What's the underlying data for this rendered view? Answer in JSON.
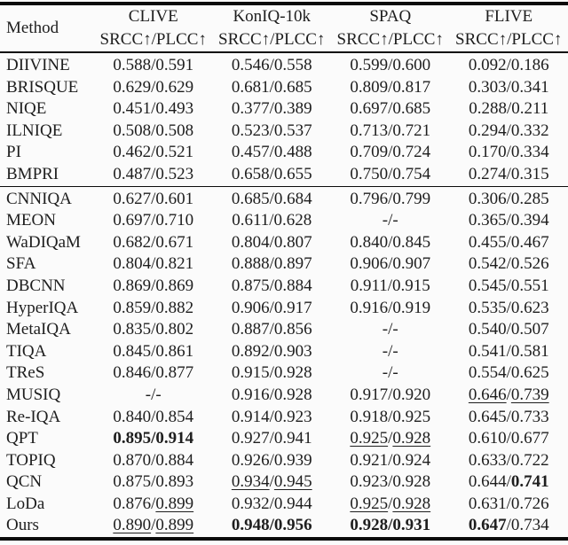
{
  "page": {
    "background_color": "#fbfbfb",
    "text_color": "#1e1e1e",
    "rule_color": "#0b0b0b"
  },
  "table": {
    "header": {
      "method_label": "Method",
      "datasets": [
        "CLIVE",
        "KonIQ-10k",
        "SPAQ",
        "FLIVE"
      ],
      "metric_label": "SRCC↑/PLCC↑"
    },
    "groups": [
      {
        "name": "hand-crafted-methods",
        "rows": [
          {
            "method": "DIIVINE",
            "cells": [
              {
                "srcc": "0.588",
                "plcc": "0.591"
              },
              {
                "srcc": "0.546",
                "plcc": "0.558"
              },
              {
                "srcc": "0.599",
                "plcc": "0.600"
              },
              {
                "srcc": "0.092",
                "plcc": "0.186"
              }
            ]
          },
          {
            "method": "BRISQUE",
            "cells": [
              {
                "srcc": "0.629",
                "plcc": "0.629"
              },
              {
                "srcc": "0.681",
                "plcc": "0.685"
              },
              {
                "srcc": "0.809",
                "plcc": "0.817"
              },
              {
                "srcc": "0.303",
                "plcc": "0.341"
              }
            ]
          },
          {
            "method": "NIQE",
            "cells": [
              {
                "srcc": "0.451",
                "plcc": "0.493"
              },
              {
                "srcc": "0.377",
                "plcc": "0.389"
              },
              {
                "srcc": "0.697",
                "plcc": "0.685"
              },
              {
                "srcc": "0.288",
                "plcc": "0.211"
              }
            ]
          },
          {
            "method": "ILNIQE",
            "cells": [
              {
                "srcc": "0.508",
                "plcc": "0.508"
              },
              {
                "srcc": "0.523",
                "plcc": "0.537"
              },
              {
                "srcc": "0.713",
                "plcc": "0.721"
              },
              {
                "srcc": "0.294",
                "plcc": "0.332"
              }
            ]
          },
          {
            "method": "PI",
            "cells": [
              {
                "srcc": "0.462",
                "plcc": "0.521"
              },
              {
                "srcc": "0.457",
                "plcc": "0.488"
              },
              {
                "srcc": "0.709",
                "plcc": "0.724"
              },
              {
                "srcc": "0.170",
                "plcc": "0.334"
              }
            ]
          },
          {
            "method": "BMPRI",
            "cells": [
              {
                "srcc": "0.487",
                "plcc": "0.523"
              },
              {
                "srcc": "0.658",
                "plcc": "0.655"
              },
              {
                "srcc": "0.750",
                "plcc": "0.754"
              },
              {
                "srcc": "0.274",
                "plcc": "0.315"
              }
            ]
          }
        ]
      },
      {
        "name": "learning-based-methods",
        "rows": [
          {
            "method": "CNNIQA",
            "cells": [
              {
                "srcc": "0.627",
                "plcc": "0.601"
              },
              {
                "srcc": "0.685",
                "plcc": "0.684"
              },
              {
                "srcc": "0.796",
                "plcc": "0.799"
              },
              {
                "srcc": "0.306",
                "plcc": "0.285"
              }
            ]
          },
          {
            "method": "MEON",
            "cells": [
              {
                "srcc": "0.697",
                "plcc": "0.710"
              },
              {
                "srcc": "0.611",
                "plcc": "0.628"
              },
              {
                "srcc": "-",
                "plcc": "-"
              },
              {
                "srcc": "0.365",
                "plcc": "0.394"
              }
            ]
          },
          {
            "method": "WaDIQaM",
            "cells": [
              {
                "srcc": "0.682",
                "plcc": "0.671"
              },
              {
                "srcc": "0.804",
                "plcc": "0.807"
              },
              {
                "srcc": "0.840",
                "plcc": "0.845"
              },
              {
                "srcc": "0.455",
                "plcc": "0.467"
              }
            ]
          },
          {
            "method": "SFA",
            "cells": [
              {
                "srcc": "0.804",
                "plcc": "0.821"
              },
              {
                "srcc": "0.888",
                "plcc": "0.897"
              },
              {
                "srcc": "0.906",
                "plcc": "0.907"
              },
              {
                "srcc": "0.542",
                "plcc": "0.526"
              }
            ]
          },
          {
            "method": "DBCNN",
            "cells": [
              {
                "srcc": "0.869",
                "plcc": "0.869"
              },
              {
                "srcc": "0.875",
                "plcc": "0.884"
              },
              {
                "srcc": "0.911",
                "plcc": "0.915"
              },
              {
                "srcc": "0.545",
                "plcc": "0.551"
              }
            ]
          },
          {
            "method": "HyperIQA",
            "cells": [
              {
                "srcc": "0.859",
                "plcc": "0.882"
              },
              {
                "srcc": "0.906",
                "plcc": "0.917"
              },
              {
                "srcc": "0.916",
                "plcc": "0.919"
              },
              {
                "srcc": "0.535",
                "plcc": "0.623"
              }
            ]
          },
          {
            "method": "MetaIQA",
            "cells": [
              {
                "srcc": "0.835",
                "plcc": "0.802"
              },
              {
                "srcc": "0.887",
                "plcc": "0.856"
              },
              {
                "srcc": "-",
                "plcc": "-"
              },
              {
                "srcc": "0.540",
                "plcc": "0.507"
              }
            ]
          },
          {
            "method": "TIQA",
            "cells": [
              {
                "srcc": "0.845",
                "plcc": "0.861"
              },
              {
                "srcc": "0.892",
                "plcc": "0.903"
              },
              {
                "srcc": "-",
                "plcc": "-"
              },
              {
                "srcc": "0.541",
                "plcc": "0.581"
              }
            ]
          },
          {
            "method": "TReS",
            "cells": [
              {
                "srcc": "0.846",
                "plcc": "0.877"
              },
              {
                "srcc": "0.915",
                "plcc": "0.928"
              },
              {
                "srcc": "-",
                "plcc": "-"
              },
              {
                "srcc": "0.554",
                "plcc": "0.625"
              }
            ]
          },
          {
            "method": "MUSIQ",
            "cells": [
              {
                "srcc": "-",
                "plcc": "-"
              },
              {
                "srcc": "0.916",
                "plcc": "0.928"
              },
              {
                "srcc": "0.917",
                "plcc": "0.920"
              },
              {
                "srcc": "0.646",
                "plcc": "0.739",
                "srcc_style": "underline",
                "plcc_style": "underline"
              }
            ]
          },
          {
            "method": "Re-IQA",
            "cells": [
              {
                "srcc": "0.840",
                "plcc": "0.854"
              },
              {
                "srcc": "0.914",
                "plcc": "0.923"
              },
              {
                "srcc": "0.918",
                "plcc": "0.925"
              },
              {
                "srcc": "0.645",
                "plcc": "0.733"
              }
            ]
          },
          {
            "method": "QPT",
            "cells": [
              {
                "srcc": "0.895",
                "plcc": "0.914",
                "srcc_style": "bold",
                "plcc_style": "bold",
                "slash_style": "bold"
              },
              {
                "srcc": "0.927",
                "plcc": "0.941"
              },
              {
                "srcc": "0.925",
                "plcc": "0.928",
                "srcc_style": "underline",
                "plcc_style": "underline"
              },
              {
                "srcc": "0.610",
                "plcc": "0.677"
              }
            ]
          },
          {
            "method": "TOPIQ",
            "cells": [
              {
                "srcc": "0.870",
                "plcc": "0.884"
              },
              {
                "srcc": "0.926",
                "plcc": "0.939"
              },
              {
                "srcc": "0.921",
                "plcc": "0.924"
              },
              {
                "srcc": "0.633",
                "plcc": "0.722"
              }
            ]
          },
          {
            "method": "QCN",
            "cells": [
              {
                "srcc": "0.875",
                "plcc": "0.893"
              },
              {
                "srcc": "0.934",
                "plcc": "0.945",
                "srcc_style": "underline",
                "plcc_style": "underline"
              },
              {
                "srcc": "0.923",
                "plcc": "0.928"
              },
              {
                "srcc": "0.644",
                "plcc": "0.741",
                "plcc_style": "bold"
              }
            ]
          },
          {
            "method": "LoDa",
            "cells": [
              {
                "srcc": "0.876",
                "plcc": "0.899",
                "plcc_style": "underline"
              },
              {
                "srcc": "0.932",
                "plcc": "0.944"
              },
              {
                "srcc": "0.925",
                "plcc": "0.928",
                "srcc_style": "underline",
                "plcc_style": "underline"
              },
              {
                "srcc": "0.631",
                "plcc": "0.726"
              }
            ]
          },
          {
            "method": "Ours",
            "cells": [
              {
                "srcc": "0.890",
                "plcc": "0.899",
                "srcc_style": "underline",
                "plcc_style": "underline"
              },
              {
                "srcc": "0.948",
                "plcc": "0.956",
                "srcc_style": "bold",
                "plcc_style": "bold",
                "slash_style": "bold"
              },
              {
                "srcc": "0.928",
                "plcc": "0.931",
                "srcc_style": "bold",
                "plcc_style": "bold",
                "slash_style": "bold"
              },
              {
                "srcc": "0.647",
                "plcc": "0.734",
                "srcc_style": "bold"
              }
            ]
          }
        ]
      }
    ]
  }
}
